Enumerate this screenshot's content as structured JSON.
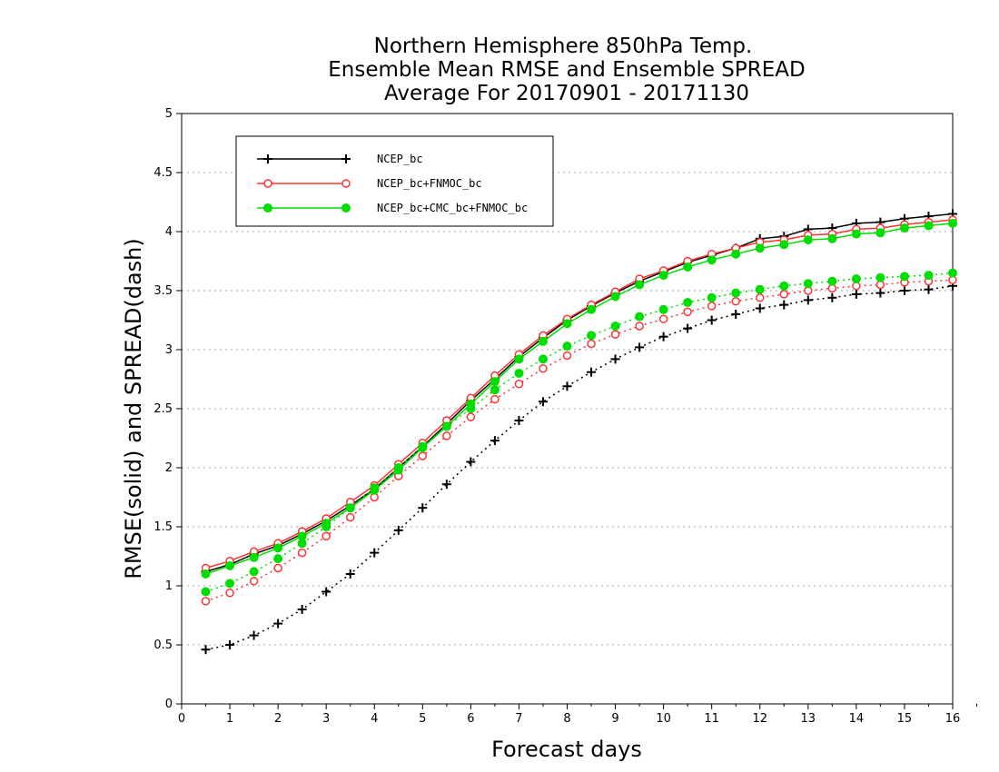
{
  "chart_data": {
    "type": "line",
    "title": [
      "Northern Hemisphere 850hPa Temp.",
      "Ensemble Mean RMSE and Ensemble SPREAD",
      "Average For 20170901 - 20171130"
    ],
    "xlabel": "Forecast days",
    "ylabel": "RMSE(solid) and SPREAD(dash)",
    "xlim": [
      0,
      16
    ],
    "ylim": [
      0,
      5
    ],
    "x_ticks": [
      "0",
      "1",
      "2",
      "3",
      "4",
      "5",
      "6",
      "7",
      "8",
      "9",
      "10",
      "11",
      "12",
      "13",
      "14",
      "15",
      "16"
    ],
    "y_ticks": [
      "0",
      "0.5",
      "1",
      "1.5",
      "2",
      "2.5",
      "3",
      "3.5",
      "4",
      "4.5",
      "5"
    ],
    "grid": "horizontal dotted",
    "legend_position": "top-left",
    "x": [
      0.5,
      1,
      1.5,
      2,
      2.5,
      3,
      3.5,
      4,
      4.5,
      5,
      5.5,
      6,
      6.5,
      7,
      7.5,
      8,
      8.5,
      9,
      9.5,
      10,
      10.5,
      11,
      11.5,
      12,
      12.5,
      13,
      13.5,
      14,
      14.5,
      15,
      15.5,
      16
    ],
    "series": [
      {
        "name": "NCEP_bc",
        "color": "#000000",
        "marker": "plus",
        "rmse": [
          1.12,
          1.18,
          1.27,
          1.34,
          1.44,
          1.55,
          1.68,
          1.82,
          2.0,
          2.18,
          2.37,
          2.57,
          2.75,
          2.94,
          3.1,
          3.25,
          3.37,
          3.48,
          3.58,
          3.66,
          3.74,
          3.8,
          3.86,
          3.94,
          3.96,
          4.02,
          4.03,
          4.07,
          4.08,
          4.11,
          4.13,
          4.15
        ],
        "spread": [
          0.46,
          0.5,
          0.58,
          0.68,
          0.8,
          0.95,
          1.1,
          1.28,
          1.47,
          1.66,
          1.86,
          2.05,
          2.23,
          2.4,
          2.56,
          2.69,
          2.81,
          2.92,
          3.02,
          3.11,
          3.18,
          3.25,
          3.3,
          3.35,
          3.38,
          3.42,
          3.44,
          3.47,
          3.48,
          3.5,
          3.51,
          3.54
        ]
      },
      {
        "name": "NCEP_bc+FNMOC_bc",
        "color": "#ff3333",
        "marker": "open-circle",
        "rmse": [
          1.15,
          1.21,
          1.29,
          1.36,
          1.46,
          1.57,
          1.71,
          1.85,
          2.03,
          2.21,
          2.4,
          2.59,
          2.78,
          2.96,
          3.12,
          3.26,
          3.38,
          3.49,
          3.6,
          3.67,
          3.75,
          3.81,
          3.86,
          3.91,
          3.93,
          3.97,
          3.98,
          4.02,
          4.03,
          4.06,
          4.08,
          4.1
        ],
        "spread": [
          0.87,
          0.94,
          1.04,
          1.15,
          1.28,
          1.42,
          1.58,
          1.75,
          1.93,
          2.1,
          2.27,
          2.43,
          2.58,
          2.71,
          2.84,
          2.95,
          3.05,
          3.13,
          3.2,
          3.26,
          3.32,
          3.37,
          3.41,
          3.44,
          3.47,
          3.5,
          3.52,
          3.54,
          3.55,
          3.57,
          3.58,
          3.59
        ]
      },
      {
        "name": "NCEP_bc+CMC_bc+FNMOC_bc",
        "color": "#00dd00",
        "marker": "filled-circle",
        "rmse": [
          1.1,
          1.17,
          1.24,
          1.32,
          1.42,
          1.53,
          1.66,
          1.81,
          1.98,
          2.17,
          2.35,
          2.54,
          2.73,
          2.92,
          3.07,
          3.22,
          3.34,
          3.45,
          3.55,
          3.63,
          3.7,
          3.76,
          3.81,
          3.86,
          3.89,
          3.93,
          3.94,
          3.98,
          3.99,
          4.03,
          4.05,
          4.07
        ],
        "spread": [
          0.95,
          1.02,
          1.12,
          1.23,
          1.36,
          1.5,
          1.66,
          1.83,
          2.0,
          2.18,
          2.35,
          2.5,
          2.66,
          2.8,
          2.92,
          3.03,
          3.12,
          3.2,
          3.28,
          3.34,
          3.4,
          3.44,
          3.48,
          3.51,
          3.54,
          3.56,
          3.58,
          3.6,
          3.61,
          3.62,
          3.63,
          3.65
        ]
      }
    ]
  }
}
